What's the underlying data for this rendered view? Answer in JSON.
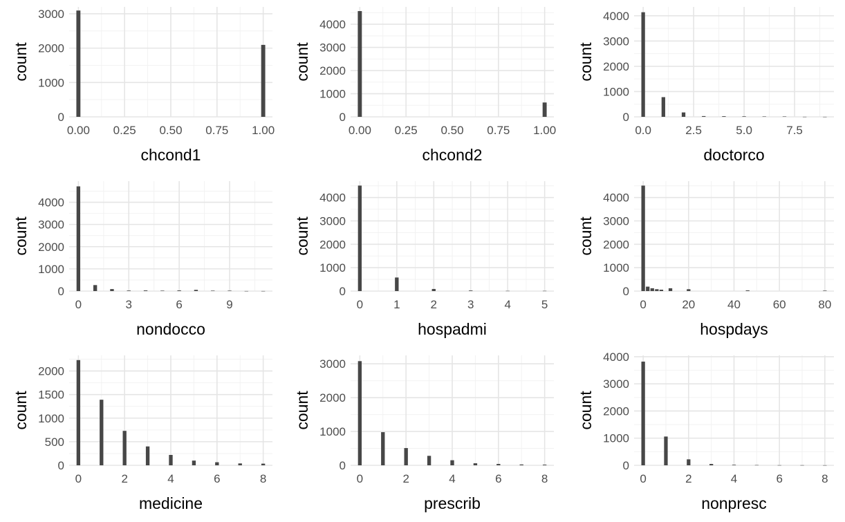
{
  "colors": {
    "bar": "#474747",
    "grid_major": "#e5e5e5",
    "grid_minor": "#f2f2f2",
    "tick_text": "#4d4d4d"
  },
  "chart_data": [
    {
      "type": "bar",
      "xlabel": "chcond1",
      "ylabel": "count",
      "xlim": [
        -0.05,
        1.05
      ],
      "ylim": [
        0,
        3200
      ],
      "xticks": [
        0,
        0.25,
        0.5,
        0.75,
        1
      ],
      "xtick_labels": [
        "0.00",
        "0.25",
        "0.50",
        "0.75",
        "1.00"
      ],
      "yticks": [
        0,
        1000,
        2000,
        3000
      ],
      "ytick_labels": [
        "0",
        "1000",
        "2000",
        "3000"
      ],
      "bar_width": 0.022,
      "x": [
        0,
        1
      ],
      "values": [
        3095,
        2095
      ]
    },
    {
      "type": "bar",
      "xlabel": "chcond2",
      "ylabel": "count",
      "xlim": [
        -0.05,
        1.05
      ],
      "ylim": [
        0,
        4750
      ],
      "xticks": [
        0,
        0.25,
        0.5,
        0.75,
        1
      ],
      "xtick_labels": [
        "0.00",
        "0.25",
        "0.50",
        "0.75",
        "1.00"
      ],
      "yticks": [
        0,
        1000,
        2000,
        3000,
        4000
      ],
      "ytick_labels": [
        "0",
        "1000",
        "2000",
        "3000",
        "4000"
      ],
      "bar_width": 0.022,
      "x": [
        0,
        1
      ],
      "values": [
        4570,
        620
      ]
    },
    {
      "type": "bar",
      "xlabel": "doctorco",
      "ylabel": "count",
      "xlim": [
        -0.45,
        9.45
      ],
      "ylim": [
        0,
        4350
      ],
      "xticks": [
        0,
        2.5,
        5,
        7.5
      ],
      "xtick_labels": [
        "0.0",
        "2.5",
        "5.0",
        "7.5"
      ],
      "yticks": [
        0,
        1000,
        2000,
        3000,
        4000
      ],
      "ytick_labels": [
        "0",
        "1000",
        "2000",
        "3000",
        "4000"
      ],
      "bar_width": 0.18,
      "x": [
        0,
        1,
        2,
        3,
        4,
        5,
        6,
        7,
        8,
        9
      ],
      "values": [
        4140,
        780,
        175,
        30,
        25,
        20,
        15,
        15,
        3,
        2
      ]
    },
    {
      "type": "bar",
      "xlabel": "nondocco",
      "ylabel": "count",
      "xlim": [
        -0.55,
        11.55
      ],
      "ylim": [
        0,
        4950
      ],
      "xticks": [
        0,
        3,
        6,
        9
      ],
      "xtick_labels": [
        "0",
        "3",
        "6",
        "9"
      ],
      "yticks": [
        0,
        1000,
        2000,
        3000,
        4000
      ],
      "ytick_labels": [
        "0",
        "1000",
        "2000",
        "3000",
        "4000"
      ],
      "bar_width": 0.22,
      "x": [
        0,
        1,
        2,
        3,
        4,
        5,
        6,
        7,
        8,
        9,
        10,
        11
      ],
      "values": [
        4715,
        270,
        90,
        25,
        30,
        20,
        30,
        55,
        20,
        20,
        3,
        3
      ]
    },
    {
      "type": "bar",
      "xlabel": "hospadmi",
      "ylabel": "count",
      "xlim": [
        -0.25,
        5.25
      ],
      "ylim": [
        0,
        4700
      ],
      "xticks": [
        0,
        1,
        2,
        3,
        4,
        5
      ],
      "xtick_labels": [
        "0",
        "1",
        "2",
        "3",
        "4",
        "5"
      ],
      "bar_width": 0.1,
      "yticks": [
        0,
        1000,
        2000,
        3000,
        4000
      ],
      "ytick_labels": [
        "0",
        "1000",
        "2000",
        "3000",
        "4000"
      ],
      "x": [
        0,
        1,
        2,
        3,
        4,
        5
      ],
      "values": [
        4510,
        580,
        90,
        25,
        10,
        10
      ]
    },
    {
      "type": "bar",
      "xlabel": "hospdays",
      "ylabel": "count",
      "xlim": [
        -4,
        84
      ],
      "ylim": [
        0,
        4700
      ],
      "xticks": [
        0,
        20,
        40,
        60,
        80
      ],
      "xtick_labels": [
        "0",
        "20",
        "40",
        "60",
        "80"
      ],
      "yticks": [
        0,
        1000,
        2000,
        3000,
        4000
      ],
      "ytick_labels": [
        "0",
        "1000",
        "2000",
        "3000",
        "4000"
      ],
      "bar_width": 1.6,
      "x": [
        0,
        2,
        4,
        6,
        8,
        12,
        20,
        46,
        80
      ],
      "values": [
        4510,
        190,
        120,
        80,
        60,
        120,
        80,
        30,
        20
      ]
    },
    {
      "type": "bar",
      "xlabel": "medicine",
      "ylabel": "count",
      "xlim": [
        -0.4,
        8.4
      ],
      "ylim": [
        0,
        2330
      ],
      "xticks": [
        0,
        2,
        4,
        6,
        8
      ],
      "xtick_labels": [
        "0",
        "2",
        "4",
        "6",
        "8"
      ],
      "yticks": [
        0,
        500,
        1000,
        1500,
        2000
      ],
      "ytick_labels": [
        "0",
        "500",
        "1000",
        "1500",
        "2000"
      ],
      "bar_width": 0.16,
      "x": [
        0,
        1,
        2,
        3,
        4,
        5,
        6,
        7,
        8
      ],
      "values": [
        2230,
        1390,
        730,
        400,
        220,
        100,
        65,
        40,
        35
      ]
    },
    {
      "type": "bar",
      "xlabel": "prescrib",
      "ylabel": "count",
      "xlim": [
        -0.4,
        8.4
      ],
      "ylim": [
        0,
        3250
      ],
      "xticks": [
        0,
        2,
        4,
        6,
        8
      ],
      "xtick_labels": [
        "0",
        "2",
        "4",
        "6",
        "8"
      ],
      "yticks": [
        0,
        1000,
        2000,
        3000
      ],
      "ytick_labels": [
        "0",
        "1000",
        "2000",
        "3000"
      ],
      "bar_width": 0.16,
      "x": [
        0,
        1,
        2,
        3,
        4,
        5,
        6,
        7,
        8
      ],
      "values": [
        3080,
        980,
        510,
        280,
        150,
        60,
        40,
        25,
        20
      ]
    },
    {
      "type": "bar",
      "xlabel": "nonpresc",
      "ylabel": "count",
      "xlim": [
        -0.4,
        8.4
      ],
      "ylim": [
        0,
        4050
      ],
      "xticks": [
        0,
        2,
        4,
        6,
        8
      ],
      "xtick_labels": [
        "0",
        "2",
        "4",
        "6",
        "8"
      ],
      "yticks": [
        0,
        1000,
        2000,
        3000,
        4000
      ],
      "ytick_labels": [
        "0",
        "1000",
        "2000",
        "3000",
        "4000"
      ],
      "bar_width": 0.16,
      "x": [
        0,
        1,
        2,
        3,
        4,
        5,
        6,
        7,
        8
      ],
      "values": [
        3820,
        1060,
        220,
        50,
        20,
        10,
        5,
        5,
        3
      ]
    }
  ]
}
